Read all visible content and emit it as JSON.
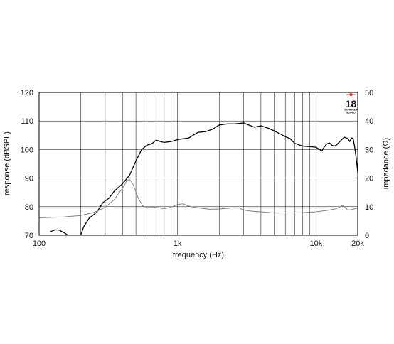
{
  "chart_data": {
    "type": "line",
    "xlabel": "frequency (Hz)",
    "ylabel": "response (dBSPL)",
    "y2label": "impedance (Ω)",
    "x_scale": "log",
    "xlim": [
      100,
      20000
    ],
    "ylim": [
      70,
      120
    ],
    "y2lim": [
      0,
      50
    ],
    "grid": true,
    "x_tick_values": [
      100,
      1000,
      10000,
      20000
    ],
    "x_tick_labels": [
      "100",
      "1k",
      "10k",
      "20k"
    ],
    "y_ticks": [
      70,
      80,
      90,
      100,
      110,
      120
    ],
    "y2_ticks": [
      0,
      10,
      20,
      30,
      40,
      50
    ],
    "series": [
      {
        "axis": "left",
        "color": "#000000",
        "points": [
          [
            120,
            71.2
          ],
          [
            130,
            71.9
          ],
          [
            140,
            71.8
          ],
          [
            155,
            70.6
          ],
          [
            160,
            70.1
          ],
          [
            200,
            70.1
          ],
          [
            210,
            73
          ],
          [
            230,
            76
          ],
          [
            260,
            78
          ],
          [
            290,
            81.5
          ],
          [
            320,
            83
          ],
          [
            350,
            85.5
          ],
          [
            400,
            88
          ],
          [
            450,
            91
          ],
          [
            500,
            96
          ],
          [
            550,
            100
          ],
          [
            600,
            101.5
          ],
          [
            650,
            102
          ],
          [
            700,
            103.3
          ],
          [
            750,
            102.8
          ],
          [
            800,
            102.5
          ],
          [
            900,
            102.8
          ],
          [
            1000,
            103.5
          ],
          [
            1200,
            104
          ],
          [
            1400,
            106
          ],
          [
            1600,
            106.3
          ],
          [
            1800,
            107.2
          ],
          [
            2000,
            108.6
          ],
          [
            2300,
            109
          ],
          [
            2600,
            109
          ],
          [
            3000,
            109.3
          ],
          [
            3300,
            108.5
          ],
          [
            3600,
            107.8
          ],
          [
            4000,
            108.3
          ],
          [
            4500,
            107.5
          ],
          [
            5000,
            106.5
          ],
          [
            5500,
            105.5
          ],
          [
            6000,
            104.5
          ],
          [
            6500,
            103.8
          ],
          [
            7000,
            102.2
          ],
          [
            8000,
            101.2
          ],
          [
            9000,
            101
          ],
          [
            10000,
            100.8
          ],
          [
            11000,
            99.5
          ],
          [
            11500,
            101
          ],
          [
            12000,
            102
          ],
          [
            12500,
            102.3
          ],
          [
            13000,
            101.5
          ],
          [
            13500,
            101.2
          ],
          [
            14000,
            101.5
          ],
          [
            15000,
            103
          ],
          [
            16000,
            104.3
          ],
          [
            17000,
            103.8
          ],
          [
            17500,
            102.8
          ],
          [
            18000,
            104
          ],
          [
            18500,
            104
          ],
          [
            19000,
            101
          ],
          [
            19500,
            97
          ],
          [
            20000,
            92
          ]
        ]
      },
      {
        "axis": "right",
        "color": "#808080",
        "points": [
          [
            100,
            6.1
          ],
          [
            150,
            6.4
          ],
          [
            200,
            6.9
          ],
          [
            250,
            8
          ],
          [
            300,
            9.8
          ],
          [
            350,
            12.5
          ],
          [
            400,
            16.5
          ],
          [
            430,
            19
          ],
          [
            450,
            19.6
          ],
          [
            480,
            17.5
          ],
          [
            520,
            13
          ],
          [
            560,
            10.3
          ],
          [
            600,
            9.7
          ],
          [
            700,
            9.8
          ],
          [
            800,
            9.3
          ],
          [
            900,
            9.8
          ],
          [
            1000,
            10.8
          ],
          [
            1100,
            11
          ],
          [
            1200,
            10.2
          ],
          [
            1400,
            9.6
          ],
          [
            1700,
            9.1
          ],
          [
            2000,
            9.2
          ],
          [
            2500,
            9.6
          ],
          [
            2800,
            9.5
          ],
          [
            3000,
            8.8
          ],
          [
            3500,
            8.4
          ],
          [
            4000,
            8.2
          ],
          [
            5000,
            7.8
          ],
          [
            6000,
            7.8
          ],
          [
            8000,
            7.9
          ],
          [
            10000,
            8.2
          ],
          [
            12000,
            8.7
          ],
          [
            14000,
            9.3
          ],
          [
            15000,
            10
          ],
          [
            15500,
            10.5
          ],
          [
            16000,
            10
          ],
          [
            17000,
            8.8
          ],
          [
            18000,
            9
          ],
          [
            19000,
            9.3
          ],
          [
            20000,
            9.5
          ]
        ]
      }
    ]
  },
  "logo": {
    "number": "18",
    "line1": "EIGHTEEN",
    "line2": "SOUND"
  }
}
